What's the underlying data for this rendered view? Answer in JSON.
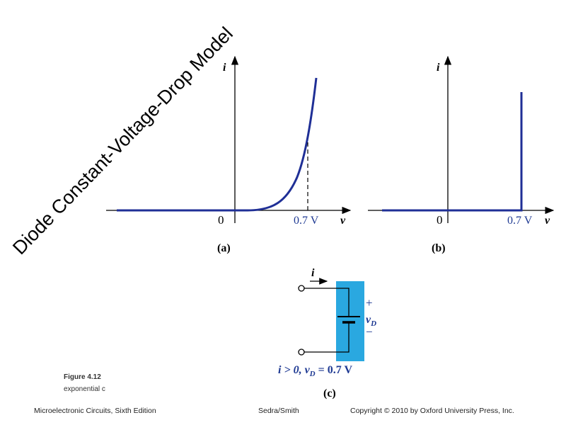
{
  "title": "Diode Constant-Voltage-Drop Model",
  "graph_a": {
    "y_label": "i",
    "origin": "0",
    "threshold": "0.7 V",
    "x_label": "v",
    "caption": "(a)"
  },
  "graph_b": {
    "y_label": "i",
    "origin": "0",
    "threshold": "0.7 V",
    "x_label": "v",
    "caption": "(b)"
  },
  "circuit_c": {
    "current": "i",
    "plus": "+",
    "voltage": {
      "var": "v",
      "sub": "D"
    },
    "minus": "−",
    "condition": [
      "i > 0, v",
      "D",
      " = 0.7 V"
    ],
    "caption": "(c)"
  },
  "figure": {
    "label": "Figure 4.12",
    "text": "exponential c"
  },
  "footer": {
    "book": "Microelectronic Circuits, Sixth Edition",
    "authors": "Sedra/Smith",
    "copyright": "Copyright © 2010 by Oxford University Press, Inc."
  }
}
